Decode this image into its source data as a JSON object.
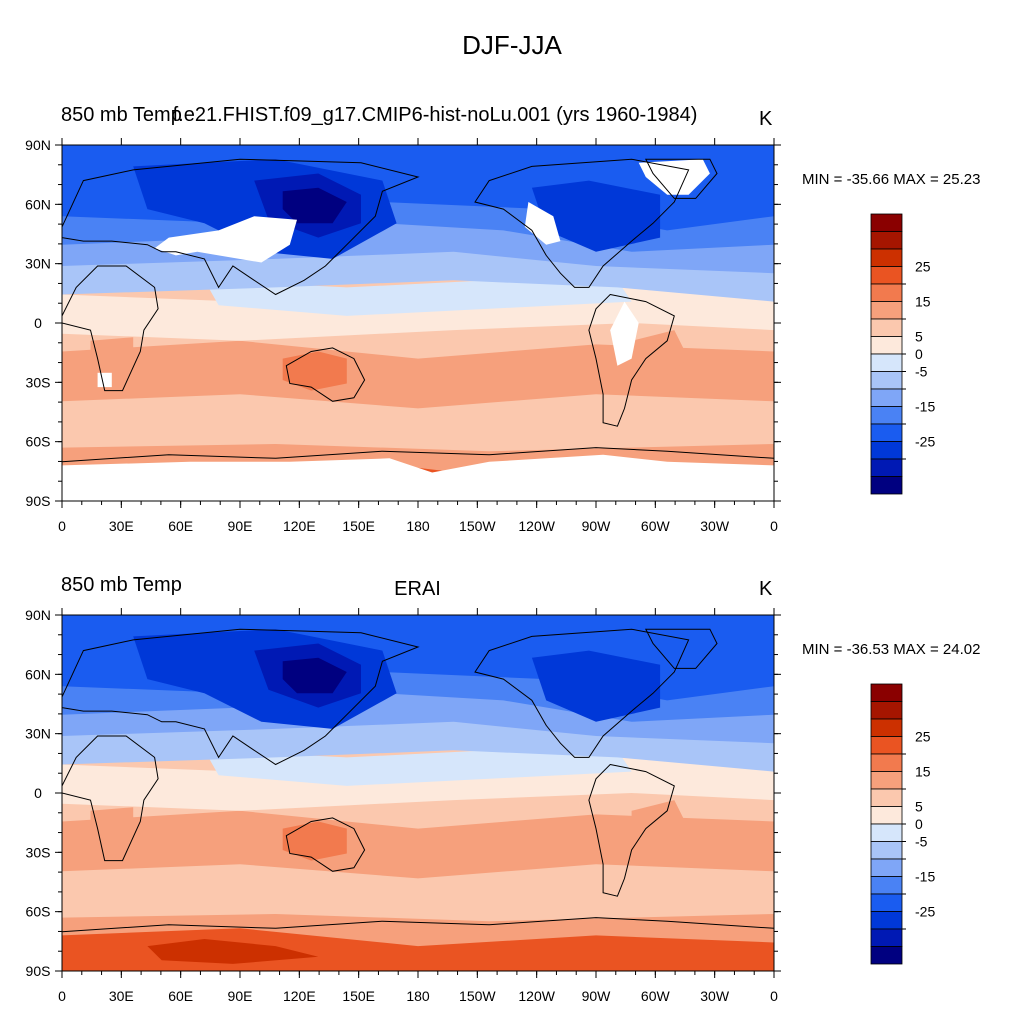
{
  "title": "DJF-JJA",
  "colors": {
    "land_mask": "#ffffff",
    "coast": "#000000",
    "levels": [
      "#000080",
      "#0019b4",
      "#0038d8",
      "#1a5cf0",
      "#4a82f4",
      "#7fa6f7",
      "#a9c5f8",
      "#d6e6fb",
      "#fde9dc",
      "#fbc8ae",
      "#f6a07c",
      "#f27a4e",
      "#ea5422",
      "#cc3000",
      "#a51500",
      "#8a0000"
    ]
  },
  "colorbar": {
    "labels": [
      "-25",
      "-15",
      "-5",
      "0",
      "5",
      "15",
      "25"
    ]
  },
  "axes": {
    "lon_labels": [
      "0",
      "30E",
      "60E",
      "90E",
      "120E",
      "150E",
      "180",
      "150W",
      "120W",
      "90W",
      "60W",
      "30W",
      "0"
    ],
    "lat_labels": [
      "90N",
      "60N",
      "30N",
      "0",
      "30S",
      "60S",
      "90S"
    ]
  },
  "panels": [
    {
      "left_label": "850 mb Temp",
      "center_label": "f.e21.FHIST.f09_g17.CMIP6-hist-noLu.001 (yrs 1960-1984)",
      "units": "K",
      "min_max": "MIN = -35.66 MAX =  25.23",
      "masked_land": true
    },
    {
      "left_label": "850 mb Temp",
      "center_label": "ERAI",
      "units": "K",
      "min_max": "MIN = -36.53 MAX =  24.02",
      "masked_land": false
    }
  ]
}
